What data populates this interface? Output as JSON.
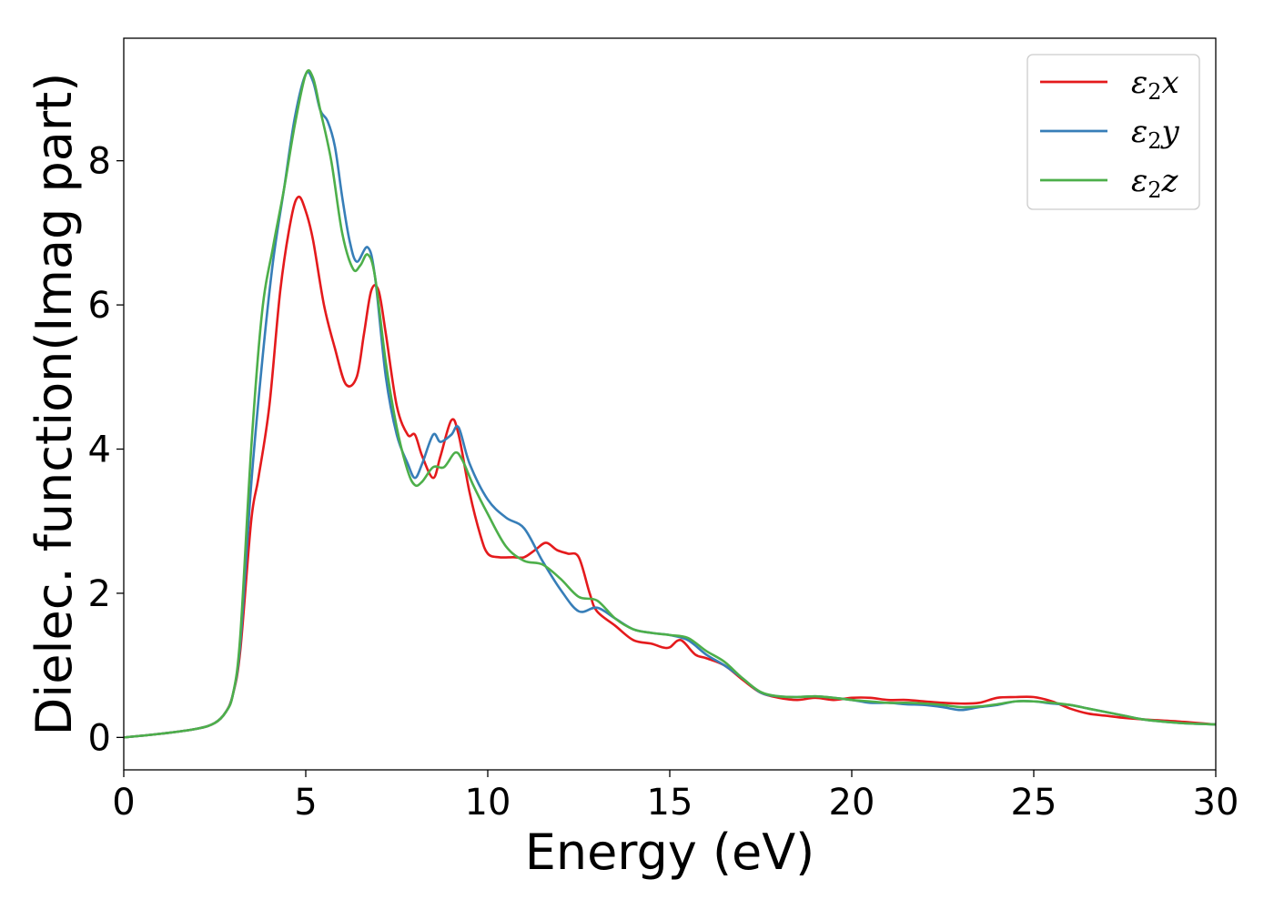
{
  "chart_data": {
    "type": "line",
    "xlabel": "Energy (eV)",
    "ylabel": "Dielec. function(Imag part)",
    "xlim": [
      0,
      30
    ],
    "ylim": [
      -0.45,
      9.7
    ],
    "xticks": [
      0,
      5,
      10,
      15,
      20,
      25,
      30
    ],
    "yticks": [
      0,
      2,
      4,
      6,
      8
    ],
    "grid": false,
    "legend_position": "top-right",
    "series": [
      {
        "name": "ε2x",
        "legend": {
          "base": "ε",
          "sub": "2",
          "suffix": "x"
        },
        "color": "#e41a1c",
        "x": [
          0,
          1,
          2,
          2.5,
          2.8,
          3.0,
          3.2,
          3.5,
          3.7,
          4.0,
          4.3,
          4.6,
          4.8,
          5.0,
          5.2,
          5.5,
          5.8,
          6.1,
          6.4,
          6.6,
          6.8,
          7.0,
          7.2,
          7.5,
          7.8,
          8.0,
          8.2,
          8.5,
          8.7,
          9.0,
          9.2,
          9.5,
          9.8,
          10.0,
          10.3,
          10.7,
          11.0,
          11.3,
          11.6,
          11.9,
          12.2,
          12.5,
          12.8,
          13.0,
          13.5,
          14.0,
          14.5,
          14.8,
          15.0,
          15.3,
          15.7,
          16.0,
          16.5,
          17.0,
          17.5,
          18.0,
          18.5,
          19.0,
          19.5,
          20.0,
          20.5,
          21.0,
          21.5,
          22.0,
          22.5,
          23.0,
          23.5,
          24.0,
          24.5,
          25.0,
          25.5,
          26.0,
          26.5,
          27.0,
          27.5,
          28.0,
          29.0,
          30.0
        ],
        "y": [
          0.0,
          0.05,
          0.12,
          0.2,
          0.35,
          0.6,
          1.2,
          3.0,
          3.6,
          4.6,
          6.2,
          7.2,
          7.5,
          7.3,
          6.9,
          6.0,
          5.4,
          4.9,
          5.0,
          5.6,
          6.2,
          6.2,
          5.6,
          4.6,
          4.2,
          4.2,
          3.9,
          3.6,
          3.9,
          4.4,
          4.2,
          3.4,
          2.8,
          2.55,
          2.5,
          2.5,
          2.5,
          2.6,
          2.7,
          2.6,
          2.55,
          2.5,
          2.0,
          1.75,
          1.55,
          1.35,
          1.3,
          1.25,
          1.25,
          1.35,
          1.15,
          1.1,
          1.0,
          0.8,
          0.62,
          0.55,
          0.52,
          0.55,
          0.52,
          0.55,
          0.55,
          0.52,
          0.52,
          0.5,
          0.48,
          0.47,
          0.48,
          0.55,
          0.56,
          0.56,
          0.5,
          0.4,
          0.33,
          0.3,
          0.27,
          0.25,
          0.22,
          0.18
        ]
      },
      {
        "name": "ε2y",
        "legend": {
          "base": "ε",
          "sub": "2",
          "suffix": "y"
        },
        "color": "#377eb8",
        "x": [
          0,
          1,
          2,
          2.5,
          2.8,
          3.0,
          3.2,
          3.5,
          3.8,
          4.1,
          4.4,
          4.7,
          5.0,
          5.2,
          5.4,
          5.6,
          5.8,
          6.0,
          6.2,
          6.4,
          6.7,
          6.9,
          7.2,
          7.5,
          7.8,
          8.0,
          8.2,
          8.5,
          8.7,
          9.0,
          9.2,
          9.5,
          10.0,
          10.5,
          11.0,
          11.5,
          12.0,
          12.5,
          13.0,
          13.5,
          14.0,
          14.5,
          15.0,
          15.5,
          16.0,
          16.5,
          17.0,
          17.5,
          18.0,
          18.5,
          19.0,
          19.5,
          20.0,
          20.5,
          21.0,
          21.5,
          22.0,
          22.5,
          23.0,
          23.5,
          24.0,
          24.5,
          25.0,
          25.5,
          26.0,
          26.5,
          27.0,
          27.5,
          28.0,
          29.0,
          30.0
        ],
        "y": [
          0.0,
          0.05,
          0.12,
          0.2,
          0.35,
          0.6,
          1.3,
          3.5,
          5.2,
          6.6,
          7.6,
          8.6,
          9.2,
          9.1,
          8.7,
          8.55,
          8.2,
          7.5,
          6.9,
          6.6,
          6.8,
          6.4,
          5.0,
          4.2,
          3.8,
          3.6,
          3.8,
          4.2,
          4.1,
          4.2,
          4.3,
          3.8,
          3.3,
          3.05,
          2.9,
          2.45,
          2.05,
          1.75,
          1.8,
          1.65,
          1.5,
          1.45,
          1.42,
          1.35,
          1.15,
          1.0,
          0.82,
          0.62,
          0.57,
          0.56,
          0.57,
          0.55,
          0.52,
          0.48,
          0.48,
          0.46,
          0.45,
          0.42,
          0.38,
          0.42,
          0.45,
          0.5,
          0.5,
          0.47,
          0.45,
          0.4,
          0.35,
          0.3,
          0.25,
          0.2,
          0.18
        ]
      },
      {
        "name": "ε2z",
        "legend": {
          "base": "ε",
          "sub": "2",
          "suffix": "z"
        },
        "color": "#4daf4a",
        "x": [
          0,
          1,
          2,
          2.5,
          2.8,
          3.0,
          3.2,
          3.5,
          3.8,
          4.1,
          4.4,
          4.7,
          5.0,
          5.2,
          5.4,
          5.7,
          6.0,
          6.3,
          6.5,
          6.7,
          6.9,
          7.2,
          7.5,
          7.8,
          8.0,
          8.2,
          8.5,
          8.8,
          9.1,
          9.3,
          9.6,
          10.0,
          10.5,
          11.0,
          11.5,
          12.0,
          12.5,
          13.0,
          13.5,
          14.0,
          14.5,
          15.0,
          15.5,
          16.0,
          16.5,
          17.0,
          17.5,
          18.0,
          18.5,
          19.0,
          19.5,
          20.0,
          20.5,
          21.0,
          21.5,
          22.0,
          22.5,
          23.0,
          23.5,
          24.0,
          24.5,
          25.0,
          25.5,
          26.0,
          26.5,
          27.0,
          27.5,
          28.0,
          29.0,
          30.0
        ],
        "y": [
          0.0,
          0.05,
          0.12,
          0.2,
          0.35,
          0.6,
          1.4,
          4.0,
          5.9,
          6.8,
          7.6,
          8.5,
          9.2,
          9.15,
          8.7,
          8.0,
          7.0,
          6.5,
          6.55,
          6.7,
          6.4,
          5.2,
          4.3,
          3.7,
          3.5,
          3.55,
          3.75,
          3.75,
          3.95,
          3.85,
          3.5,
          3.1,
          2.65,
          2.45,
          2.4,
          2.2,
          1.95,
          1.9,
          1.65,
          1.5,
          1.45,
          1.42,
          1.38,
          1.2,
          1.05,
          0.82,
          0.63,
          0.57,
          0.56,
          0.57,
          0.55,
          0.52,
          0.5,
          0.48,
          0.48,
          0.47,
          0.45,
          0.42,
          0.43,
          0.46,
          0.5,
          0.5,
          0.48,
          0.45,
          0.4,
          0.35,
          0.3,
          0.25,
          0.2,
          0.18
        ]
      }
    ]
  }
}
